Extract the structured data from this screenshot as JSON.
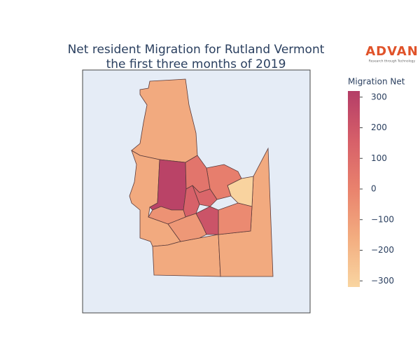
{
  "chart_data": {
    "type": "choropleth",
    "title": [
      "Net resident Migration for Rutland Vermont",
      "the first three months of 2019"
    ],
    "values": [
      -150,
      -150,
      -150,
      -150,
      290,
      -310,
      -30,
      20,
      60,
      130,
      150,
      210,
      -80,
      -60
    ],
    "colorscale": [
      "#f9d5a1",
      "#f3ad80",
      "#e9826d",
      "#d65f69",
      "#b43d67"
    ],
    "colorbar": {
      "title": "Migration Net",
      "lim": [
        -320,
        320
      ],
      "ticks": [
        {
          "value": -300,
          "label": "−300"
        },
        {
          "value": -200,
          "label": "−200"
        },
        {
          "value": -100,
          "label": "−100"
        },
        0,
        100,
        200,
        300
      ]
    }
  },
  "logo": {
    "title": "ADVAN",
    "subtitle": "Research through Technology"
  }
}
